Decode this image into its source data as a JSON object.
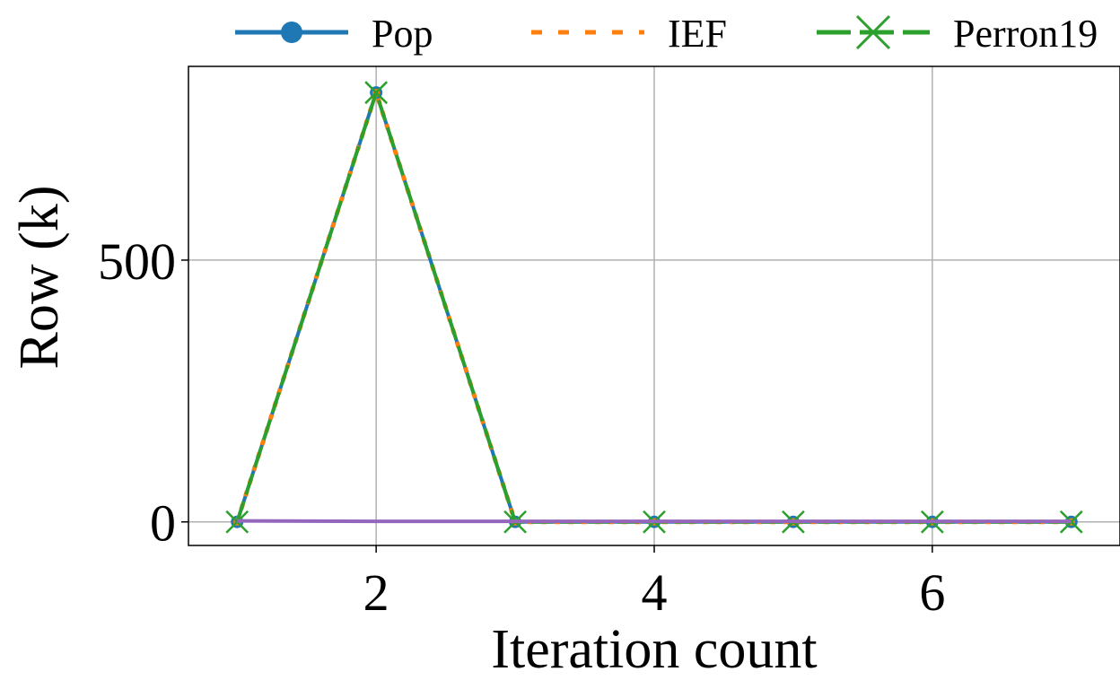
{
  "chart_data": {
    "type": "line",
    "xlabel": "Iteration count",
    "ylabel": "Row (k)",
    "xlim": [
      0.65,
      7.35
    ],
    "ylim": [
      -45,
      870
    ],
    "x_ticks": [
      2,
      4,
      6
    ],
    "x_tick_labels": [
      "2",
      "4",
      "6"
    ],
    "y_ticks": [
      0,
      500
    ],
    "y_tick_labels": [
      "0",
      "500"
    ],
    "grid": true,
    "legend_position": "top, outside plot",
    "x": [
      1,
      2,
      3,
      4,
      5,
      6,
      7
    ],
    "series": [
      {
        "name": "Pop",
        "values": [
          0,
          820,
          0,
          0,
          0,
          0,
          0
        ],
        "color": "#1f77b4",
        "line_style": "solid",
        "marker": "circle"
      },
      {
        "name": "IEF",
        "values": [
          0,
          820,
          0,
          0,
          0,
          0,
          0
        ],
        "color": "#ff7f0e",
        "line_style": "dotted",
        "marker": "square"
      },
      {
        "name": "Perron19",
        "values": [
          0,
          820,
          0,
          0,
          0,
          0,
          0
        ],
        "color": "#2ca02c",
        "line_style": "dashed",
        "marker": "x"
      },
      {
        "name": "",
        "values": [
          2,
          1,
          1,
          1,
          1,
          1,
          1
        ],
        "color": "#9467bd",
        "line_style": "solid",
        "marker": "none"
      }
    ]
  }
}
